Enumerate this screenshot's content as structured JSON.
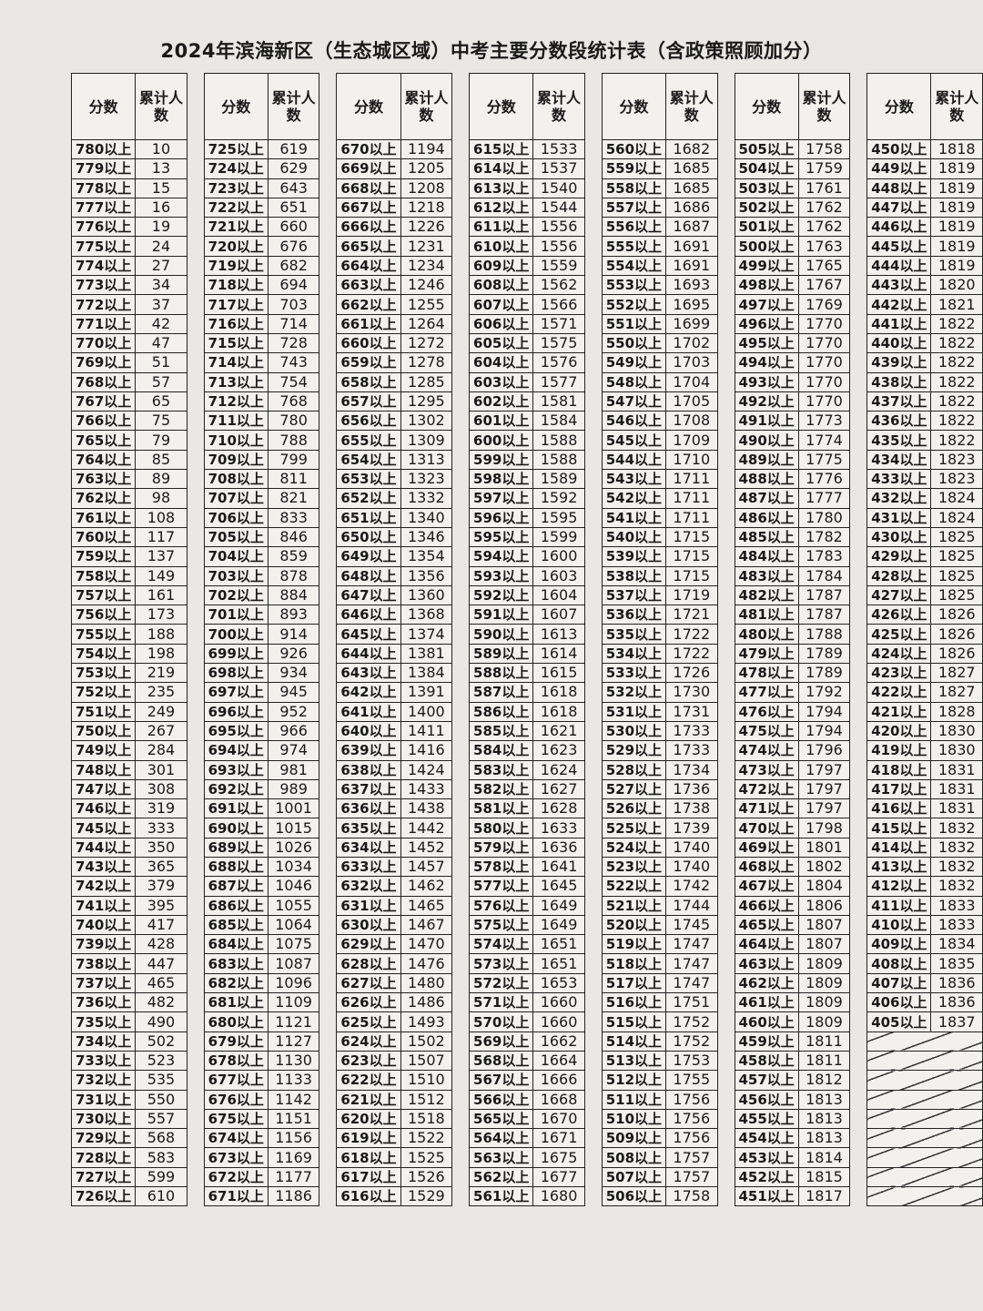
{
  "title": "2024年滨海新区（生态城区域）中考主要分数段统计表（含政策照顾加分）",
  "header": {
    "score": "分数",
    "count": "累计人数"
  },
  "suffix": "以上",
  "columns": [
    {
      "start": 780,
      "counts": [
        10,
        13,
        15,
        16,
        19,
        24,
        27,
        34,
        37,
        42,
        47,
        51,
        57,
        65,
        75,
        79,
        85,
        89,
        98,
        108,
        117,
        137,
        149,
        161,
        173,
        188,
        198,
        219,
        235,
        249,
        267,
        284,
        301,
        308,
        319,
        333,
        350,
        365,
        379,
        395,
        417,
        428,
        447,
        465,
        482,
        490,
        502,
        523,
        535,
        550,
        557,
        568,
        583,
        599,
        610
      ]
    },
    {
      "start": 725,
      "counts": [
        619,
        629,
        643,
        651,
        660,
        676,
        682,
        694,
        703,
        714,
        728,
        743,
        754,
        768,
        780,
        788,
        799,
        811,
        821,
        833,
        846,
        859,
        878,
        884,
        893,
        914,
        926,
        934,
        945,
        952,
        966,
        974,
        981,
        989,
        1001,
        1015,
        1026,
        1034,
        1046,
        1055,
        1064,
        1075,
        1087,
        1096,
        1109,
        1121,
        1127,
        1130,
        1133,
        1142,
        1151,
        1156,
        1169,
        1177,
        1186
      ]
    },
    {
      "start": 670,
      "counts": [
        1194,
        1205,
        1208,
        1218,
        1226,
        1231,
        1234,
        1246,
        1255,
        1264,
        1272,
        1278,
        1285,
        1295,
        1302,
        1309,
        1313,
        1323,
        1332,
        1340,
        1346,
        1354,
        1356,
        1360,
        1368,
        1374,
        1381,
        1384,
        1391,
        1400,
        1411,
        1416,
        1424,
        1433,
        1438,
        1442,
        1452,
        1457,
        1462,
        1465,
        1467,
        1470,
        1476,
        1480,
        1486,
        1493,
        1502,
        1507,
        1510,
        1512,
        1518,
        1522,
        1525,
        1526,
        1529
      ]
    },
    {
      "start": 615,
      "counts": [
        1533,
        1537,
        1540,
        1544,
        1556,
        1556,
        1559,
        1562,
        1566,
        1571,
        1575,
        1576,
        1577,
        1581,
        1584,
        1588,
        1588,
        1589,
        1592,
        1595,
        1599,
        1600,
        1603,
        1604,
        1607,
        1613,
        1614,
        1615,
        1618,
        1618,
        1621,
        1623,
        1624,
        1627,
        1628,
        1633,
        1636,
        1641,
        1645,
        1649,
        1649,
        1651,
        1651,
        1653,
        1660,
        1660,
        1662,
        1664,
        1666,
        1668,
        1670,
        1671,
        1675,
        1677,
        1680
      ]
    },
    {
      "start": 560,
      "counts": [
        1682,
        1685,
        1685,
        1686,
        1687,
        1691,
        1691,
        1693,
        1695,
        1699,
        1702,
        1703,
        1704,
        1705,
        1708,
        1709,
        1710,
        1711,
        1711,
        1711,
        1715,
        1715,
        1715,
        1719,
        1721,
        1722,
        1722,
        1726,
        1730,
        1731,
        1733,
        1733,
        1734,
        1736,
        1738,
        1739,
        1740,
        1740,
        1742,
        1744,
        1745,
        1747,
        1747,
        1747,
        1751,
        1752,
        1752,
        1753,
        1755,
        1756,
        1756,
        1756,
        1757,
        1757,
        1758
      ]
    },
    {
      "start": 505,
      "counts": [
        1758,
        1759,
        1761,
        1762,
        1762,
        1763,
        1765,
        1767,
        1769,
        1770,
        1770,
        1770,
        1770,
        1770,
        1773,
        1774,
        1775,
        1776,
        1777,
        1780,
        1782,
        1783,
        1784,
        1787,
        1787,
        1788,
        1789,
        1789,
        1792,
        1794,
        1794,
        1796,
        1797,
        1797,
        1797,
        1798,
        1801,
        1802,
        1804,
        1806,
        1807,
        1807,
        1809,
        1809,
        1809,
        1809,
        1811,
        1811,
        1812,
        1813,
        1813,
        1813,
        1814,
        1815,
        1817
      ]
    },
    {
      "start": 450,
      "counts": [
        1818,
        1819,
        1819,
        1819,
        1819,
        1819,
        1819,
        1820,
        1821,
        1822,
        1822,
        1822,
        1822,
        1822,
        1822,
        1822,
        1823,
        1823,
        1824,
        1824,
        1825,
        1825,
        1825,
        1825,
        1826,
        1826,
        1826,
        1827,
        1827,
        1828,
        1830,
        1830,
        1831,
        1831,
        1831,
        1832,
        1832,
        1832,
        1832,
        1833,
        1833,
        1834,
        1835,
        1836,
        1836,
        1837
      ]
    }
  ]
}
